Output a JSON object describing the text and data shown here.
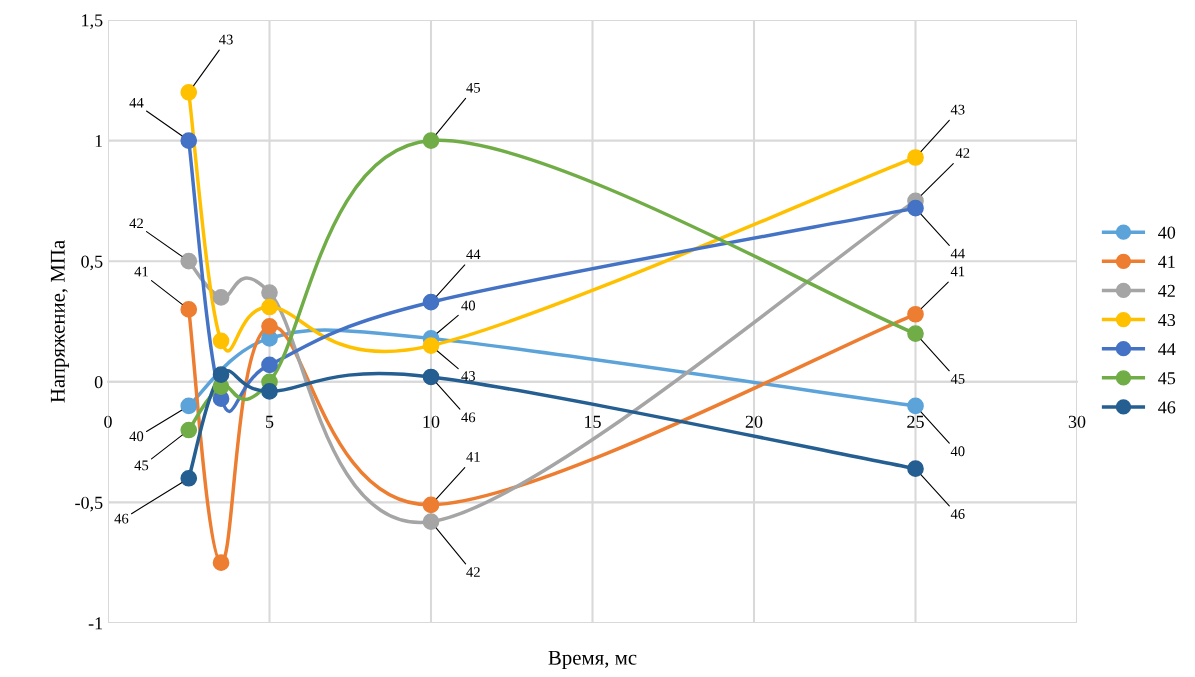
{
  "chart_data": {
    "type": "line",
    "xlabel": "Время, мс",
    "ylabel": "Напряжение, МПа",
    "x": [
      2.5,
      3.5,
      5,
      10,
      25
    ],
    "series": [
      {
        "name": "40",
        "color": "#5ba3d9",
        "values": [
          -0.1,
          null,
          0.18,
          0.18,
          -0.1
        ]
      },
      {
        "name": "41",
        "color": "#ed7d31",
        "values": [
          0.3,
          -0.75,
          0.23,
          -0.51,
          0.28
        ]
      },
      {
        "name": "42",
        "color": "#a5a5a5",
        "values": [
          0.5,
          0.35,
          0.37,
          -0.58,
          0.75
        ]
      },
      {
        "name": "43",
        "color": "#ffc000",
        "values": [
          1.2,
          0.17,
          0.31,
          0.15,
          0.93
        ]
      },
      {
        "name": "44",
        "color": "#4472c4",
        "values": [
          1.0,
          -0.07,
          0.07,
          0.33,
          0.72
        ]
      },
      {
        "name": "45",
        "color": "#70ad47",
        "values": [
          -0.2,
          -0.02,
          0.0,
          1.0,
          0.2
        ]
      },
      {
        "name": "46",
        "color": "#255e91",
        "values": [
          -0.4,
          0.03,
          -0.04,
          0.02,
          -0.36
        ]
      }
    ],
    "xlim": [
      0,
      30
    ],
    "xticks": [
      0,
      5,
      10,
      15,
      20,
      25,
      30
    ],
    "ylim": [
      -1,
      1.5
    ],
    "yticks": [
      -1,
      {
        "value": -0.5,
        "label": "-0,5"
      },
      0,
      {
        "value": 0.5,
        "label": "0,5"
      },
      1,
      {
        "value": 1.5,
        "label": "1,5"
      }
    ],
    "grid": true,
    "legend": "right",
    "marker": "circle",
    "line_style": "solid",
    "annotations": [
      {
        "text": "43",
        "x": 2.5,
        "y": 1.2
      },
      {
        "text": "44",
        "x": 2.5,
        "y": 1.0
      },
      {
        "text": "42",
        "x": 2.5,
        "y": 0.5
      },
      {
        "text": "41",
        "x": 2.5,
        "y": 0.3
      },
      {
        "text": "40",
        "x": 2.5,
        "y": -0.1
      },
      {
        "text": "45",
        "x": 2.5,
        "y": -0.2
      },
      {
        "text": "46",
        "x": 2.5,
        "y": -0.4
      },
      {
        "text": "45",
        "x": 10,
        "y": 1.0
      },
      {
        "text": "44",
        "x": 10,
        "y": 0.33
      },
      {
        "text": "40",
        "x": 10,
        "y": 0.18
      },
      {
        "text": "43",
        "x": 10,
        "y": 0.15
      },
      {
        "text": "46",
        "x": 10,
        "y": 0.02
      },
      {
        "text": "41",
        "x": 10,
        "y": -0.51
      },
      {
        "text": "42",
        "x": 10,
        "y": -0.58
      },
      {
        "text": "43",
        "x": 25,
        "y": 0.93
      },
      {
        "text": "42",
        "x": 25,
        "y": 0.75
      },
      {
        "text": "44",
        "x": 25,
        "y": 0.72
      },
      {
        "text": "41",
        "x": 25,
        "y": 0.28
      },
      {
        "text": "45",
        "x": 25,
        "y": 0.2
      },
      {
        "text": "40",
        "x": 25,
        "y": -0.1
      },
      {
        "text": "46",
        "x": 25,
        "y": -0.36
      }
    ]
  }
}
